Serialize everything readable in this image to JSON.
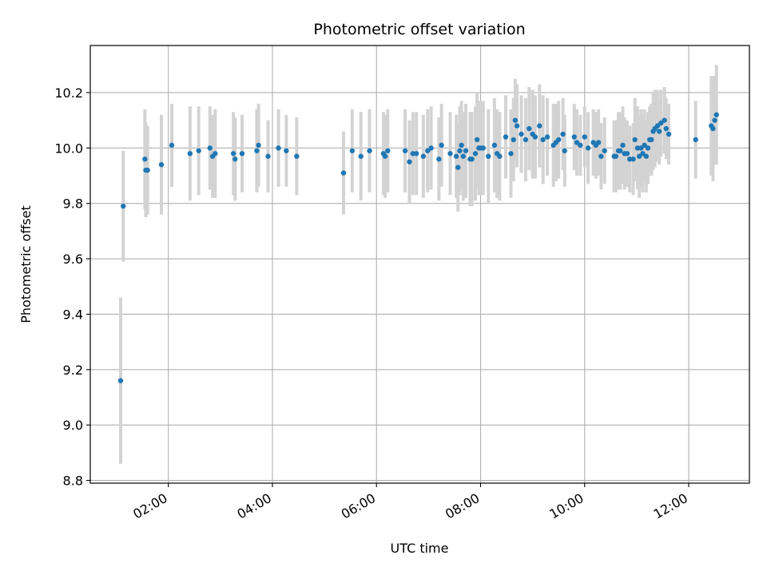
{
  "chart_data": {
    "type": "scatter",
    "title": "Photometric offset variation",
    "xlabel": "UTC time",
    "ylabel": "Photometric offset",
    "x_ticks": [
      "02:00",
      "04:00",
      "06:00",
      "08:00",
      "10:00",
      "12:00"
    ],
    "y_ticks": [
      "8.8",
      "9.0",
      "9.2",
      "9.4",
      "9.6",
      "9.8",
      "10.0",
      "10.2"
    ],
    "xlim": [
      "00:30",
      "13:10"
    ],
    "ylim": [
      8.79,
      10.37
    ],
    "grid": true,
    "legend": "none",
    "colors": {
      "points": "#1f77b4",
      "errorbars": "#d3d3d3",
      "grid": "#b0b0b0"
    },
    "series": [
      {
        "x": [
          "01:05",
          "01:08",
          "01:33",
          "01:34",
          "01:36",
          "01:52",
          "02:04",
          "02:25",
          "02:35",
          "02:48",
          "02:51",
          "02:54",
          "03:15",
          "03:17",
          "03:25",
          "03:42",
          "03:44",
          "03:55",
          "04:07",
          "04:16",
          "04:28",
          "05:22",
          "05:32",
          "05:42",
          "05:52",
          "06:08",
          "06:10",
          "06:13",
          "06:33",
          "06:38",
          "06:42",
          "06:46",
          "06:54",
          "06:59",
          "07:03",
          "07:12",
          "07:15",
          "07:25",
          "07:32",
          "07:34",
          "07:36",
          "07:38",
          "07:40",
          "07:43",
          "07:48",
          "07:50",
          "07:54",
          "07:56",
          "07:58",
          "08:00",
          "08:03",
          "08:09",
          "08:16",
          "08:19",
          "08:22",
          "08:29",
          "08:35",
          "08:38",
          "08:40",
          "08:42",
          "08:47",
          "08:52",
          "08:56",
          "09:00",
          "09:03",
          "09:08",
          "09:12",
          "09:17",
          "09:24",
          "09:27",
          "09:30",
          "09:35",
          "09:37",
          "09:48",
          "09:51",
          "09:55",
          "10:00",
          "10:04",
          "10:10",
          "10:13",
          "10:16",
          "10:19",
          "10:23",
          "10:34",
          "10:36",
          "10:39",
          "10:41",
          "10:44",
          "10:46",
          "10:49",
          "10:52",
          "10:56",
          "10:58",
          "11:01",
          "11:03",
          "11:05",
          "11:07",
          "11:09",
          "11:11",
          "11:13",
          "11:15",
          "11:17",
          "11:19",
          "11:21",
          "11:24",
          "11:26",
          "11:28",
          "11:32",
          "11:34",
          "11:37",
          "12:08",
          "12:26",
          "12:28",
          "12:30",
          "12:32"
        ],
        "y": [
          9.16,
          9.79,
          9.96,
          9.92,
          9.92,
          9.94,
          10.01,
          9.98,
          9.99,
          10.0,
          9.97,
          9.98,
          9.98,
          9.96,
          9.98,
          9.99,
          10.01,
          9.97,
          10.0,
          9.99,
          9.97,
          9.91,
          9.99,
          9.97,
          9.99,
          9.98,
          9.97,
          9.99,
          9.99,
          9.95,
          9.98,
          9.98,
          9.97,
          9.99,
          10.0,
          9.96,
          10.01,
          9.98,
          9.97,
          9.93,
          9.99,
          10.01,
          9.97,
          9.99,
          9.96,
          9.96,
          9.98,
          10.03,
          10.0,
          10.0,
          10.0,
          9.97,
          10.01,
          9.98,
          9.97,
          10.04,
          9.98,
          10.03,
          10.1,
          10.08,
          10.05,
          10.03,
          10.07,
          10.05,
          10.04,
          10.08,
          10.03,
          10.04,
          10.01,
          10.02,
          10.03,
          10.05,
          9.99,
          10.04,
          10.02,
          10.01,
          10.04,
          10.0,
          10.02,
          10.01,
          10.02,
          9.97,
          9.99,
          9.97,
          9.97,
          9.99,
          9.99,
          10.01,
          9.98,
          9.98,
          9.96,
          9.96,
          10.03,
          10.0,
          9.97,
          10.0,
          9.98,
          10.01,
          9.97,
          10.0,
          10.03,
          10.03,
          10.06,
          10.07,
          10.08,
          10.06,
          10.09,
          10.1,
          10.07,
          10.05,
          10.03,
          10.08,
          10.07,
          10.1,
          10.12
        ],
        "err": [
          0.3,
          0.2,
          0.18,
          0.17,
          0.16,
          0.18,
          0.15,
          0.17,
          0.16,
          0.15,
          0.15,
          0.16,
          0.15,
          0.15,
          0.14,
          0.15,
          0.15,
          0.13,
          0.14,
          0.13,
          0.14,
          0.15,
          0.15,
          0.16,
          0.15,
          0.15,
          0.15,
          0.15,
          0.15,
          0.15,
          0.15,
          0.15,
          0.15,
          0.15,
          0.15,
          0.15,
          0.15,
          0.15,
          0.15,
          0.16,
          0.16,
          0.16,
          0.16,
          0.17,
          0.17,
          0.17,
          0.17,
          0.17,
          0.17,
          0.17,
          0.17,
          0.17,
          0.17,
          0.16,
          0.16,
          0.15,
          0.16,
          0.15,
          0.15,
          0.15,
          0.14,
          0.15,
          0.15,
          0.16,
          0.15,
          0.15,
          0.16,
          0.14,
          0.15,
          0.14,
          0.14,
          0.13,
          0.13,
          0.12,
          0.12,
          0.11,
          0.11,
          0.13,
          0.12,
          0.12,
          0.12,
          0.12,
          0.12,
          0.13,
          0.13,
          0.14,
          0.14,
          0.14,
          0.13,
          0.12,
          0.12,
          0.13,
          0.15,
          0.15,
          0.15,
          0.14,
          0.14,
          0.13,
          0.13,
          0.13,
          0.12,
          0.13,
          0.14,
          0.14,
          0.13,
          0.12,
          0.12,
          0.12,
          0.11,
          0.11,
          0.14,
          0.18,
          0.19,
          0.16,
          0.18
        ]
      }
    ]
  }
}
